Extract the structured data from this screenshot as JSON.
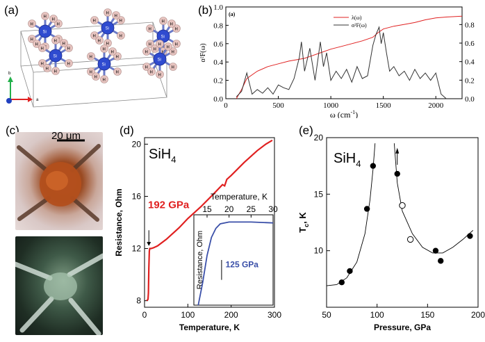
{
  "panels": {
    "a": {
      "label": "(a)",
      "axis_b": "b",
      "axis_a": "a",
      "atom_label": "H",
      "si_label": "Si"
    },
    "b": {
      "label": "(b)",
      "inner_label": "(a)",
      "ylabel": "α²F(ω)",
      "xlabel_main": "ω (cm",
      "xlabel_sup": "-1",
      "xlabel_end": ")",
      "legend": [
        "λ(ω)",
        "α²F(ω)"
      ],
      "xticks": [
        "0",
        "500",
        "1000",
        "1500",
        "2000"
      ],
      "yticks_left": [
        "0.0",
        "0.2",
        "0.4",
        "0.6",
        "0.8",
        "1.0"
      ],
      "yticks_right": [
        "0.0",
        "0.2",
        "0.4",
        "0.6",
        "0.8"
      ]
    },
    "c": {
      "label": "(c)",
      "scalebar": "20 μm"
    },
    "d": {
      "label": "(d)",
      "compound": "SiH",
      "compound_sub": "4",
      "pressure_main": "192 GPa",
      "xlabel": "Temperature, K",
      "ylabel": "Resistance, Ohm",
      "xticks": [
        "0",
        "100",
        "200",
        "300"
      ],
      "yticks": [
        "8",
        "12",
        "16",
        "20"
      ],
      "inset": {
        "xlabel": "Temperature, K",
        "ylabel": "Resistance, Ohm",
        "xticks": [
          "15",
          "20",
          "25",
          "30"
        ],
        "pressure": "125 GPa"
      }
    },
    "e": {
      "label": "(e)",
      "compound": "SiH",
      "compound_sub": "4",
      "xlabel": "Pressure, GPa",
      "ylabel": "T",
      "ylabel_sub": "c",
      "ylabel_end": ", K",
      "xticks": [
        "50",
        "100",
        "150",
        "200"
      ],
      "yticks": [
        "10",
        "15",
        "20"
      ]
    }
  },
  "chart_data": [
    {
      "type": "line",
      "title": "",
      "xlabel": "ω (cm-1)",
      "ylabel": "α²F(ω)",
      "xlim": [
        0,
        2250
      ],
      "ylim": [
        0,
        1.0
      ],
      "series": [
        {
          "name": "λ(ω)",
          "color": "#e02020",
          "x": [
            100,
            150,
            200,
            300,
            400,
            500,
            600,
            700,
            750,
            800,
            900,
            1000,
            1100,
            1200,
            1300,
            1400,
            1450,
            1500,
            1600,
            1700,
            1800,
            1900,
            2000,
            2100,
            2250
          ],
          "y": [
            0.0,
            0.1,
            0.22,
            0.3,
            0.35,
            0.38,
            0.41,
            0.43,
            0.44,
            0.46,
            0.5,
            0.54,
            0.57,
            0.6,
            0.63,
            0.67,
            0.72,
            0.76,
            0.79,
            0.81,
            0.83,
            0.86,
            0.88,
            0.89,
            0.9
          ]
        },
        {
          "name": "α²F(ω)",
          "color": "#333333",
          "x": [
            100,
            150,
            200,
            250,
            300,
            350,
            400,
            450,
            500,
            550,
            600,
            650,
            700,
            720,
            750,
            780,
            800,
            850,
            900,
            930,
            960,
            1000,
            1050,
            1100,
            1150,
            1200,
            1250,
            1300,
            1350,
            1400,
            1430,
            1460,
            1480,
            1500,
            1530,
            1560,
            1600,
            1650,
            1700,
            1750,
            1800,
            1850,
            1900,
            1950,
            2000,
            2050,
            2100
          ],
          "y": [
            0.02,
            0.08,
            0.28,
            0.05,
            0.1,
            0.06,
            0.12,
            0.05,
            0.15,
            0.12,
            0.1,
            0.22,
            0.45,
            0.62,
            0.3,
            0.45,
            0.55,
            0.2,
            0.62,
            0.35,
            0.5,
            0.2,
            0.3,
            0.22,
            0.32,
            0.18,
            0.35,
            0.22,
            0.25,
            0.58,
            0.7,
            0.78,
            0.6,
            0.72,
            0.5,
            0.3,
            0.35,
            0.25,
            0.3,
            0.2,
            0.32,
            0.22,
            0.28,
            0.2,
            0.28,
            0.05,
            0.0
          ]
        }
      ]
    },
    {
      "type": "line",
      "title": "",
      "xlabel": "Temperature, K",
      "ylabel": "Resistance, Ohm",
      "xlim": [
        0,
        300
      ],
      "ylim": [
        7.5,
        20.5
      ],
      "series": [
        {
          "name": "192 GPa",
          "color": "#e02020",
          "x": [
            5,
            8,
            9,
            10,
            11,
            12,
            15,
            20,
            30,
            50,
            80,
            100,
            130,
            160,
            180,
            185,
            190,
            200,
            230,
            260,
            280,
            295
          ],
          "y": [
            8.0,
            8.1,
            8.6,
            10.5,
            11.8,
            12.0,
            12.0,
            12.05,
            12.2,
            12.7,
            13.6,
            14.3,
            15.2,
            16.2,
            16.9,
            16.8,
            17.3,
            17.6,
            18.6,
            19.5,
            20.0,
            20.3
          ]
        },
        {
          "name": "125 GPa",
          "color": "#3a4fa8",
          "x": [
            13,
            14,
            15,
            16,
            17,
            18,
            20,
            25,
            30
          ],
          "y": [
            0.0,
            0.25,
            0.55,
            0.75,
            0.85,
            0.9,
            0.92,
            0.92,
            0.91
          ]
        }
      ]
    },
    {
      "type": "scatter",
      "title": "",
      "xlabel": "Pressure, GPa",
      "ylabel": "Tc, K",
      "xlim": [
        50,
        200
      ],
      "ylim": [
        5,
        20
      ],
      "series": [
        {
          "name": "filled",
          "x": [
            65,
            73,
            90,
            96,
            120,
            158,
            163,
            192
          ],
          "y": [
            7.2,
            8.2,
            13.7,
            17.5,
            16.8,
            10.0,
            9.1,
            11.3
          ]
        },
        {
          "name": "open",
          "x": [
            125,
            133
          ],
          "y": [
            14.0,
            11.0
          ]
        }
      ]
    }
  ]
}
